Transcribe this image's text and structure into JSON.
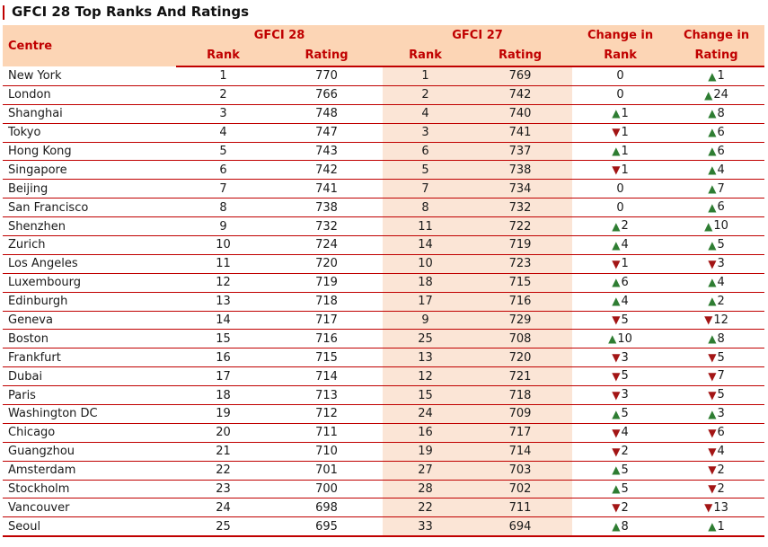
{
  "title": "GFCI 28 Top Ranks And Ratings",
  "headers": {
    "centre": "Centre",
    "gfci28": "GFCI 28",
    "gfci27": "GFCI 27",
    "rank": "Rank",
    "rating": "Rating",
    "change_in_rank_line1": "Change in",
    "change_in_rank_line2": "Rank",
    "change_in_rating_line1": "Change in",
    "change_in_rating_line2": "Rating"
  },
  "colors": {
    "accent": "#c00000",
    "header_fill": "#fcd5b5",
    "shade_fill": "#fbe5d6",
    "up": "#2e7d32",
    "down": "#a31515"
  },
  "icons": {
    "up": "triangle-up-icon",
    "down": "triangle-down-icon"
  },
  "rows": [
    {
      "centre": "New York",
      "rank28": "1",
      "rating28": "770",
      "rank27": "1",
      "rating27": "769",
      "chg_rank": "0",
      "chg_rank_dir": "none",
      "chg_rating": "1",
      "chg_rating_dir": "up"
    },
    {
      "centre": "London",
      "rank28": "2",
      "rating28": "766",
      "rank27": "2",
      "rating27": "742",
      "chg_rank": "0",
      "chg_rank_dir": "none",
      "chg_rating": "24",
      "chg_rating_dir": "up"
    },
    {
      "centre": "Shanghai",
      "rank28": "3",
      "rating28": "748",
      "rank27": "4",
      "rating27": "740",
      "chg_rank": "1",
      "chg_rank_dir": "up",
      "chg_rating": "8",
      "chg_rating_dir": "up"
    },
    {
      "centre": "Tokyo",
      "rank28": "4",
      "rating28": "747",
      "rank27": "3",
      "rating27": "741",
      "chg_rank": "1",
      "chg_rank_dir": "down",
      "chg_rating": "6",
      "chg_rating_dir": "up"
    },
    {
      "centre": "Hong Kong",
      "rank28": "5",
      "rating28": "743",
      "rank27": "6",
      "rating27": "737",
      "chg_rank": "1",
      "chg_rank_dir": "up",
      "chg_rating": "6",
      "chg_rating_dir": "up"
    },
    {
      "centre": "Singapore",
      "rank28": "6",
      "rating28": "742",
      "rank27": "5",
      "rating27": "738",
      "chg_rank": "1",
      "chg_rank_dir": "down",
      "chg_rating": "4",
      "chg_rating_dir": "up"
    },
    {
      "centre": "Beijing",
      "rank28": "7",
      "rating28": "741",
      "rank27": "7",
      "rating27": "734",
      "chg_rank": "0",
      "chg_rank_dir": "none",
      "chg_rating": "7",
      "chg_rating_dir": "up"
    },
    {
      "centre": "San Francisco",
      "rank28": "8",
      "rating28": "738",
      "rank27": "8",
      "rating27": "732",
      "chg_rank": "0",
      "chg_rank_dir": "none",
      "chg_rating": "6",
      "chg_rating_dir": "up"
    },
    {
      "centre": "Shenzhen",
      "rank28": "9",
      "rating28": "732",
      "rank27": "11",
      "rating27": "722",
      "chg_rank": "2",
      "chg_rank_dir": "up",
      "chg_rating": "10",
      "chg_rating_dir": "up"
    },
    {
      "centre": "Zurich",
      "rank28": "10",
      "rating28": "724",
      "rank27": "14",
      "rating27": "719",
      "chg_rank": "4",
      "chg_rank_dir": "up",
      "chg_rating": "5",
      "chg_rating_dir": "up"
    },
    {
      "centre": "Los Angeles",
      "rank28": "11",
      "rating28": "720",
      "rank27": "10",
      "rating27": "723",
      "chg_rank": "1",
      "chg_rank_dir": "down",
      "chg_rating": "3",
      "chg_rating_dir": "down"
    },
    {
      "centre": "Luxembourg",
      "rank28": "12",
      "rating28": "719",
      "rank27": "18",
      "rating27": "715",
      "chg_rank": "6",
      "chg_rank_dir": "up",
      "chg_rating": "4",
      "chg_rating_dir": "up"
    },
    {
      "centre": "Edinburgh",
      "rank28": "13",
      "rating28": "718",
      "rank27": "17",
      "rating27": "716",
      "chg_rank": "4",
      "chg_rank_dir": "up",
      "chg_rating": "2",
      "chg_rating_dir": "up"
    },
    {
      "centre": "Geneva",
      "rank28": "14",
      "rating28": "717",
      "rank27": "9",
      "rating27": "729",
      "chg_rank": "5",
      "chg_rank_dir": "down",
      "chg_rating": "12",
      "chg_rating_dir": "down"
    },
    {
      "centre": "Boston",
      "rank28": "15",
      "rating28": "716",
      "rank27": "25",
      "rating27": "708",
      "chg_rank": "10",
      "chg_rank_dir": "up",
      "chg_rating": "8",
      "chg_rating_dir": "up"
    },
    {
      "centre": "Frankfurt",
      "rank28": "16",
      "rating28": "715",
      "rank27": "13",
      "rating27": "720",
      "chg_rank": "3",
      "chg_rank_dir": "down",
      "chg_rating": "5",
      "chg_rating_dir": "down"
    },
    {
      "centre": "Dubai",
      "rank28": "17",
      "rating28": "714",
      "rank27": "12",
      "rating27": "721",
      "chg_rank": "5",
      "chg_rank_dir": "down",
      "chg_rating": "7",
      "chg_rating_dir": "down"
    },
    {
      "centre": "Paris",
      "rank28": "18",
      "rating28": "713",
      "rank27": "15",
      "rating27": "718",
      "chg_rank": "3",
      "chg_rank_dir": "down",
      "chg_rating": "5",
      "chg_rating_dir": "down"
    },
    {
      "centre": "Washington DC",
      "rank28": "19",
      "rating28": "712",
      "rank27": "24",
      "rating27": "709",
      "chg_rank": "5",
      "chg_rank_dir": "up",
      "chg_rating": "3",
      "chg_rating_dir": "up"
    },
    {
      "centre": "Chicago",
      "rank28": "20",
      "rating28": "711",
      "rank27": "16",
      "rating27": "717",
      "chg_rank": "4",
      "chg_rank_dir": "down",
      "chg_rating": "6",
      "chg_rating_dir": "down"
    },
    {
      "centre": "Guangzhou",
      "rank28": "21",
      "rating28": "710",
      "rank27": "19",
      "rating27": "714",
      "chg_rank": "2",
      "chg_rank_dir": "down",
      "chg_rating": "4",
      "chg_rating_dir": "down"
    },
    {
      "centre": "Amsterdam",
      "rank28": "22",
      "rating28": "701",
      "rank27": "27",
      "rating27": "703",
      "chg_rank": "5",
      "chg_rank_dir": "up",
      "chg_rating": "2",
      "chg_rating_dir": "down"
    },
    {
      "centre": "Stockholm",
      "rank28": "23",
      "rating28": "700",
      "rank27": "28",
      "rating27": "702",
      "chg_rank": "5",
      "chg_rank_dir": "up",
      "chg_rating": "2",
      "chg_rating_dir": "down"
    },
    {
      "centre": "Vancouver",
      "rank28": "24",
      "rating28": "698",
      "rank27": "22",
      "rating27": "711",
      "chg_rank": "2",
      "chg_rank_dir": "down",
      "chg_rating": "13",
      "chg_rating_dir": "down"
    },
    {
      "centre": "Seoul",
      "rank28": "25",
      "rating28": "695",
      "rank27": "33",
      "rating27": "694",
      "chg_rank": "8",
      "chg_rank_dir": "up",
      "chg_rating": "1",
      "chg_rating_dir": "up"
    }
  ]
}
